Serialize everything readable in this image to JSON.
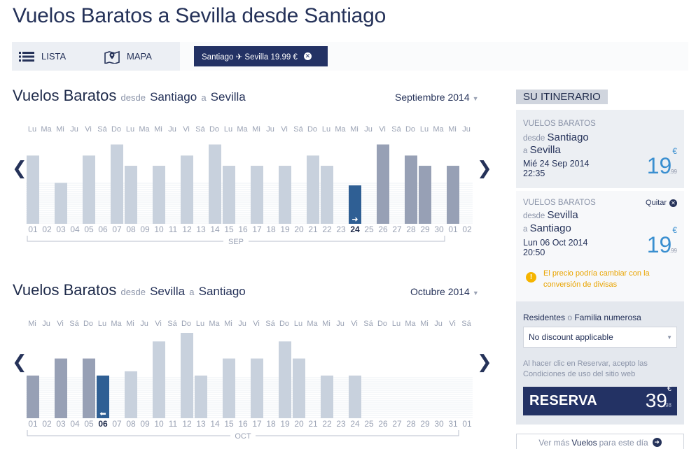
{
  "page": {
    "title": "Vuelos Baratos a Sevilla desde Santiago"
  },
  "topbar": {
    "list_label": "LISTA",
    "map_label": "MAPA",
    "route_chip": "Santiago ✈ Sevilla 19.99 €"
  },
  "outbound": {
    "heading": "Vuelos Baratos",
    "from_word": "desde",
    "origin": "Santiago",
    "to_word": "a",
    "destination": "Sevilla",
    "month": "Septiembre 2014",
    "prev": "❮",
    "next": "❯"
  },
  "inbound": {
    "heading": "Vuelos Baratos",
    "from_word": "desde",
    "origin": "Sevilla",
    "to_word": "a",
    "destination": "Santiago",
    "month": "Octubre 2014",
    "prev": "❮",
    "next": "❯"
  },
  "chart_data": [
    {
      "type": "bar",
      "title": "Vuelos Baratos desde Santiago a Sevilla",
      "weekdays": [
        "Lu",
        "Ma",
        "Mi",
        "Ju",
        "Vi",
        "Sá",
        "Do",
        "Lu",
        "Ma",
        "Mi",
        "Ju",
        "Vi",
        "Sá",
        "Do",
        "Lu",
        "Ma",
        "Mi",
        "Ju",
        "Vi",
        "Sá",
        "Do",
        "Lu",
        "Ma",
        "Mi",
        "Ju",
        "Vi",
        "Sá",
        "Do",
        "Lu",
        "Ma",
        "Mi",
        "Ju"
      ],
      "categories": [
        "01",
        "02",
        "03",
        "04",
        "05",
        "06",
        "07",
        "08",
        "09",
        "10",
        "11",
        "12",
        "13",
        "14",
        "15",
        "16",
        "17",
        "18",
        "19",
        "20",
        "21",
        "22",
        "23",
        "24",
        "25",
        "26",
        "27",
        "28",
        "29",
        "30",
        "01",
        "02"
      ],
      "values": [
        0.8,
        0,
        0.48,
        0,
        0.8,
        0,
        0.93,
        0.68,
        0,
        0.68,
        0,
        0.8,
        0,
        0.93,
        0.68,
        0,
        0.68,
        0,
        0.68,
        0,
        0.8,
        0.68,
        0,
        0.45,
        0,
        0.93,
        0,
        0.8,
        0.68,
        0,
        0.68,
        0
      ],
      "highlight_dark": [
        25,
        27,
        28,
        30
      ],
      "selected_index": 23,
      "month_label": "SEP",
      "colors": {
        "bar": "#c8d1dd",
        "dark": "#97a0b5",
        "selected": "#2f5f94"
      }
    },
    {
      "type": "bar",
      "title": "Vuelos Baratos desde Sevilla a Santiago",
      "weekdays": [
        "Mi",
        "Ju",
        "Vi",
        "Sá",
        "Do",
        "Lu",
        "Ma",
        "Mi",
        "Ju",
        "Vi",
        "Sá",
        "Do",
        "Lu",
        "Ma",
        "Mi",
        "Ju",
        "Vi",
        "Sá",
        "Do",
        "Lu",
        "Ma",
        "Mi",
        "Ju",
        "Vi",
        "Sá",
        "Do",
        "Lu",
        "Ma",
        "Mi",
        "Ju",
        "Vi",
        "Sá"
      ],
      "categories": [
        "01",
        "02",
        "03",
        "04",
        "05",
        "06",
        "07",
        "08",
        "09",
        "10",
        "11",
        "12",
        "13",
        "14",
        "15",
        "16",
        "17",
        "18",
        "19",
        "20",
        "21",
        "22",
        "23",
        "24",
        "25",
        "26",
        "27",
        "28",
        "29",
        "30",
        "31",
        "01"
      ],
      "values": [
        0.5,
        0,
        0.7,
        0,
        0.7,
        0.5,
        0,
        0.55,
        0,
        0.9,
        0,
        1.0,
        0.5,
        0,
        0.7,
        0,
        0.7,
        0,
        0.9,
        0.7,
        0,
        0.5,
        0,
        0.5,
        0,
        0,
        0,
        0,
        0,
        0,
        0,
        0
      ],
      "highlight_dark": [
        0,
        2,
        4
      ],
      "selected_index": 5,
      "month_label": "OCT",
      "colors": {
        "bar": "#c8d1dd",
        "dark": "#97a0b5",
        "selected": "#2f5f94"
      }
    }
  ],
  "sidebar": {
    "title": "SU ITINERARIO",
    "leg1": {
      "kicker": "VUELOS BARATOS",
      "from_word": "desde",
      "origin": "Santiago",
      "to_word": "a",
      "destination": "Sevilla",
      "date": "Mié 24 Sep 2014",
      "time": "22:35",
      "price": "19",
      "currency": "€",
      "cents": ".99"
    },
    "leg2": {
      "kicker": "VUELOS BARATOS",
      "remove": "Quitar",
      "from_word": "desde",
      "origin": "Sevilla",
      "to_word": "a",
      "destination": "Santiago",
      "date": "Lun 06 Oct 2014",
      "time": "20:50",
      "price": "19",
      "currency": "€",
      "cents": ".99",
      "warning": "El precio podría cambiar con la conversión de divisas"
    },
    "booking": {
      "residents": "Residentes",
      "or_word": "o",
      "family": "Familia numerosa",
      "discount_value": "No discount applicable",
      "terms": "Al hacer clic en Reservar, acepto las Condiciones de uso del sitio web",
      "reserve_label": "RESERVA",
      "total": "39",
      "currency": "€",
      "cents": ".98"
    },
    "more": {
      "prefix": "Ver más",
      "bold": "Vuelos",
      "suffix": "para este día"
    }
  }
}
